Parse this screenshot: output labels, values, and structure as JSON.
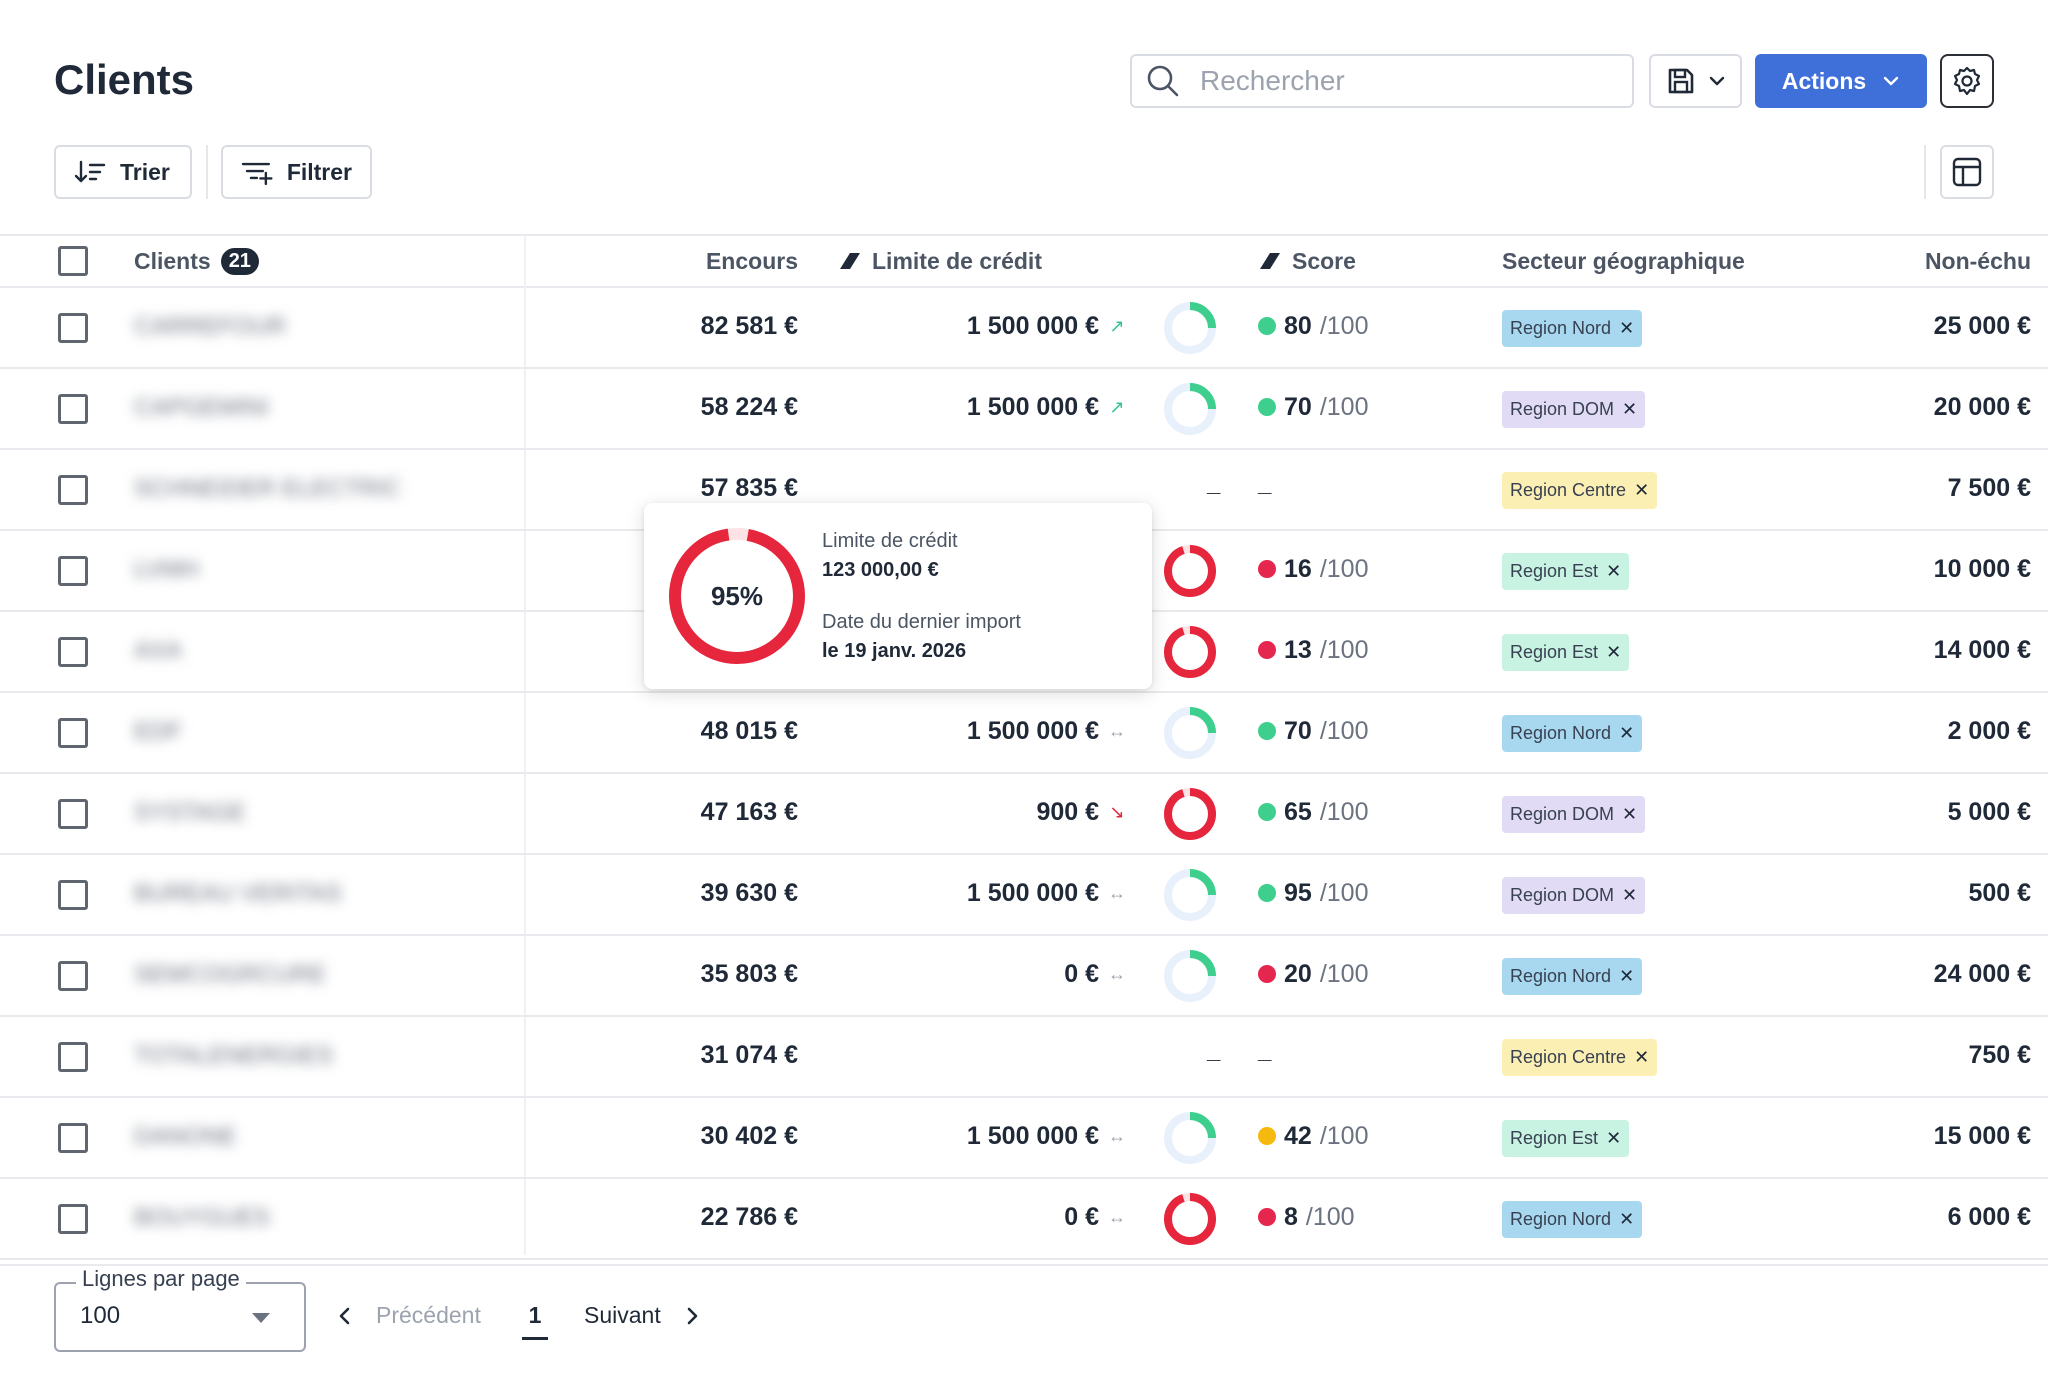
{
  "header": {
    "title": "Clients",
    "search_placeholder": "Rechercher",
    "actions_label": "Actions"
  },
  "toolbar": {
    "sort_label": "Trier",
    "filter_label": "Filtrer"
  },
  "table": {
    "columns": {
      "clients": "Clients",
      "clients_count": "21",
      "encours": "Encours",
      "limite": "Limite de crédit",
      "score": "Score",
      "secteur": "Secteur géographique",
      "nonechu": "Non-échu"
    },
    "rows": [
      {
        "name": "CARREFOUR",
        "encours": "82 581 €",
        "limite": "1 500 000 €",
        "trend": "up",
        "usage": 0.25,
        "score": "80",
        "score_den": "/100",
        "score_color": "#3ecf8e",
        "tag": "Region Nord",
        "tag_color": "#a8d8f0",
        "nonechu": "25 000 €"
      },
      {
        "name": "CAPGEMINI",
        "encours": "58 224 €",
        "limite": "1 500 000 €",
        "trend": "up",
        "usage": 0.25,
        "score": "70",
        "score_den": "/100",
        "score_color": "#3ecf8e",
        "tag": "Region DOM",
        "tag_color": "#e2dbf5",
        "nonechu": "20 000 €"
      },
      {
        "name": "SCHNEIDER ELECTRIC",
        "encours": "57 835 €",
        "limite": "",
        "trend": "none",
        "usage": null,
        "score": "",
        "score_den": "",
        "score_color": "",
        "tag": "Region Centre",
        "tag_color": "#fcefb4",
        "nonechu": "7 500 €"
      },
      {
        "name": "LVMH",
        "encours": "",
        "limite": "",
        "trend": "none",
        "usage": 0.95,
        "score": "16",
        "score_den": "/100",
        "score_color": "#e5264f",
        "tag": "Region Est",
        "tag_color": "#c8f2e2",
        "nonechu": "10 000 €"
      },
      {
        "name": "AXA",
        "encours": "",
        "limite": "",
        "trend": "none",
        "usage": 0.95,
        "score": "13",
        "score_den": "/100",
        "score_color": "#e5264f",
        "tag": "Region Est",
        "tag_color": "#c8f2e2",
        "nonechu": "14 000 €"
      },
      {
        "name": "EDF",
        "encours": "48 015 €",
        "limite": "1 500 000 €",
        "trend": "flat",
        "usage": 0.25,
        "score": "70",
        "score_den": "/100",
        "score_color": "#3ecf8e",
        "tag": "Region Nord",
        "tag_color": "#a8d8f0",
        "nonechu": "2 000 €"
      },
      {
        "name": "SYSTAGE",
        "encours": "47 163 €",
        "limite": "900 €",
        "trend": "down",
        "usage": 0.95,
        "score": "65",
        "score_den": "/100",
        "score_color": "#3ecf8e",
        "tag": "Region DOM",
        "tag_color": "#e2dbf5",
        "nonechu": "5 000 €"
      },
      {
        "name": "BUREAU VERITAS",
        "encours": "39 630 €",
        "limite": "1 500 000 €",
        "trend": "flat",
        "usage": 0.25,
        "score": "95",
        "score_den": "/100",
        "score_color": "#3ecf8e",
        "tag": "Region DOM",
        "tag_color": "#e2dbf5",
        "nonechu": "500 €"
      },
      {
        "name": "SEMCOGRCURE",
        "encours": "35 803 €",
        "limite": "0 €",
        "trend": "flat",
        "usage": 0.25,
        "score": "20",
        "score_den": "/100",
        "score_color": "#e5264f",
        "tag": "Region Nord",
        "tag_color": "#a8d8f0",
        "nonechu": "24 000 €"
      },
      {
        "name": "TOTALENERGIES",
        "encours": "31 074 €",
        "limite": "",
        "trend": "none",
        "usage": null,
        "score": "",
        "score_den": "",
        "score_color": "",
        "tag": "Region Centre",
        "tag_color": "#fcefb4",
        "nonechu": "750 €"
      },
      {
        "name": "DANONE",
        "encours": "30 402 €",
        "limite": "1 500 000 €",
        "trend": "flat",
        "usage": 0.25,
        "score": "42",
        "score_den": "/100",
        "score_color": "#f6b90f",
        "tag": "Region Est",
        "tag_color": "#c8f2e2",
        "nonechu": "15 000 €"
      },
      {
        "name": "BOUYGUES",
        "encours": "22 786 €",
        "limite": "0 €",
        "trend": "flat",
        "usage": 0.95,
        "score": "8",
        "score_den": "/100",
        "score_color": "#e5264f",
        "tag": "Region Nord",
        "tag_color": "#a8d8f0",
        "nonechu": "6 000 €"
      }
    ]
  },
  "tooltip": {
    "percent": "95%",
    "usage": 0.95,
    "label1": "Limite de crédit",
    "value1": "123 000,00 €",
    "label2": "Date du dernier import",
    "value2": "le 19 janv. 2026"
  },
  "footer": {
    "rows_label": "Lignes par page",
    "rows_value": "100",
    "prev_label": "Précédent",
    "page": "1",
    "next_label": "Suivant"
  },
  "colors": {
    "accent": "#3f6fd8",
    "danger": "#e5263c",
    "success": "#3ecf8e"
  }
}
